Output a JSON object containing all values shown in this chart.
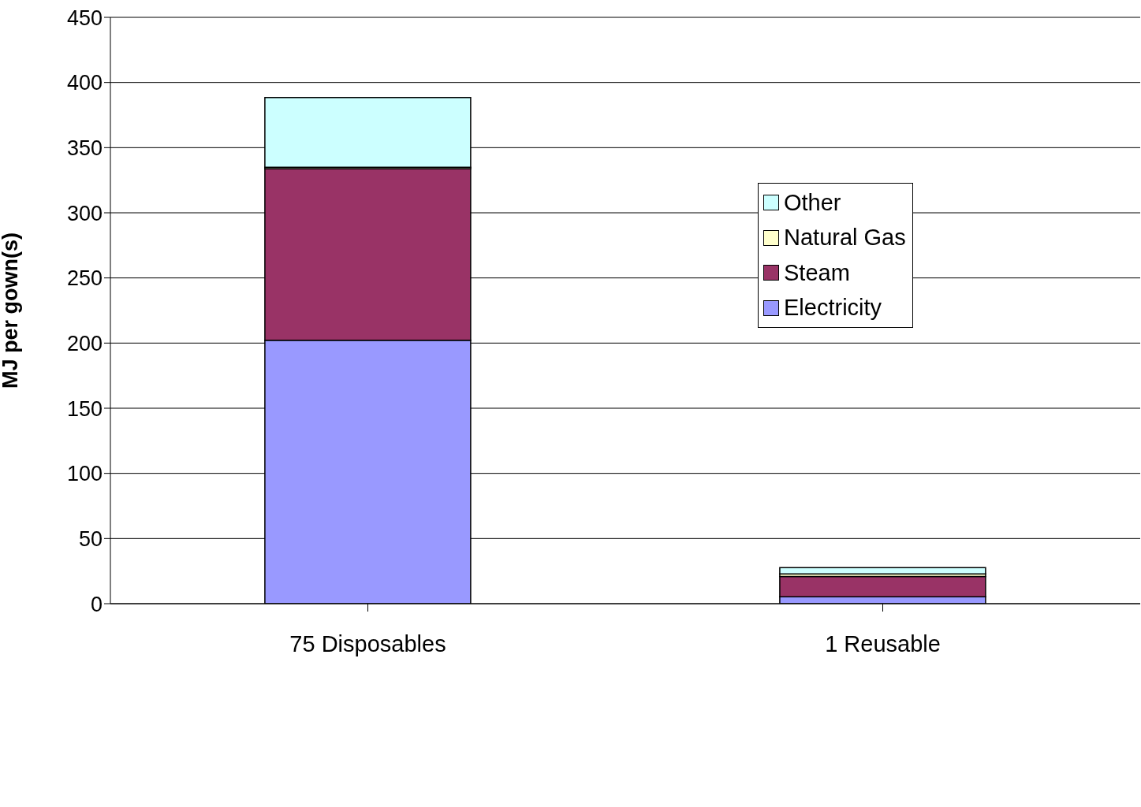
{
  "chart_data": {
    "type": "bar",
    "stacked": true,
    "ylabel": "MJ per gown(s)",
    "categories": [
      "75 Disposables",
      "1 Reusable"
    ],
    "series": [
      {
        "name": "Electricity",
        "color": "#9999ff",
        "values": [
          202.2,
          5.3
        ]
      },
      {
        "name": "Steam",
        "color": "#993366",
        "values": [
          131.7,
          15.6
        ]
      },
      {
        "name": "Natural Gas",
        "color": "#ffffcc",
        "values": [
          1,
          1.9
        ]
      },
      {
        "name": "Other",
        "color": "#ccffff",
        "values": [
          53.6,
          4.8
        ]
      }
    ],
    "ylim": [
      0,
      450
    ],
    "yticks": [
      0,
      50,
      100,
      150,
      200,
      250,
      300,
      350,
      400,
      450
    ],
    "grid": "y",
    "legend": "right"
  }
}
